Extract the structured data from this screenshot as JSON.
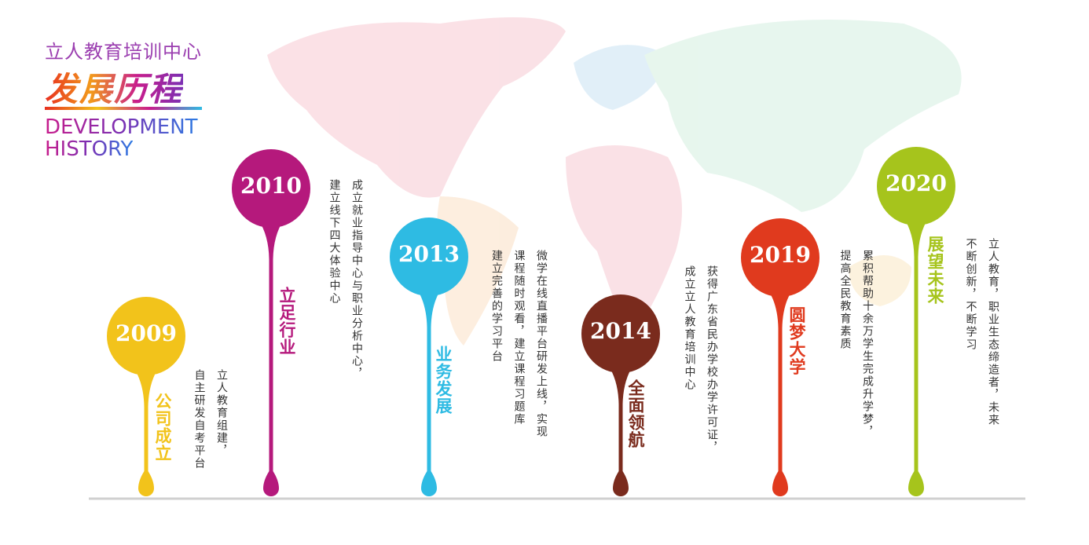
{
  "header": {
    "title": "立人教育培训中心",
    "heading": "发展历程",
    "english_line1": "DEVELOPMENT",
    "english_line2": "HISTORY"
  },
  "milestones": [
    {
      "year": "2009",
      "title": "公司成立",
      "color": "#f2c31b",
      "description": [
        "立人教育组建，",
        "自主研发自考平台"
      ]
    },
    {
      "year": "2010",
      "title": "立足行业",
      "color": "#b5197c",
      "description": [
        "成立就业指导中心与职业分析中心，",
        "建立线下四大体验中心"
      ]
    },
    {
      "year": "2013",
      "title": "业务发展",
      "color": "#2ebbe3",
      "description": [
        "微学在线直播平台研发上线，实现",
        "课程随时观看，建立课程习题库",
        "建立完善的学习平台"
      ]
    },
    {
      "year": "2014",
      "title": "全面领航",
      "color": "#7a2b1d",
      "description": [
        "获得广东省民办学校办学许可证，",
        "成立立人教育培训中心"
      ]
    },
    {
      "year": "2019",
      "title": "圆梦大学",
      "color": "#e03a1e",
      "description": [
        "累积帮助十余万学生完成升学梦，",
        "提高全民教育素质"
      ]
    },
    {
      "year": "2020",
      "title": "展望未来",
      "color": "#a6c41c",
      "description": [
        "立人教育，职业生态缔造者，未来",
        "不断创新，不断学习"
      ]
    }
  ]
}
